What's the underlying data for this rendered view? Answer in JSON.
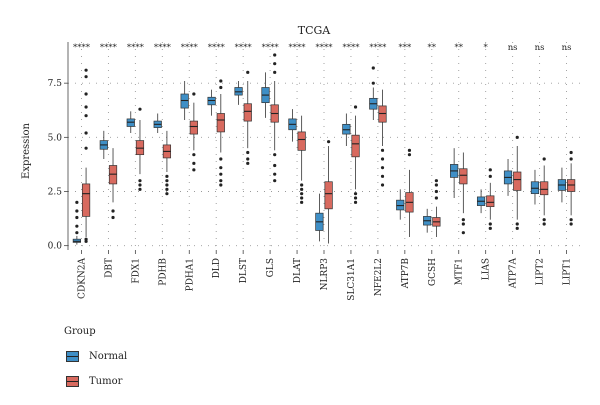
{
  "chart_data": {
    "type": "box",
    "title": "TCGA",
    "xlabel": "",
    "ylabel": "Expression",
    "ylim": [
      -0.2,
      9.4
    ],
    "yticks": [
      "0.0",
      "2.5",
      "5.0",
      "7.5"
    ],
    "grid": "dotted",
    "categories": [
      "CDKN2A",
      "DBT",
      "FDX1",
      "PDHB",
      "PDHA1",
      "DLD",
      "DLST",
      "GLS",
      "DLAT",
      "NLRP3",
      "SLC31A1",
      "NFE2L2",
      "ATP7B",
      "GCSH",
      "MTF1",
      "LIAS",
      "ATP7A",
      "LIPT2",
      "LIPT1"
    ],
    "significance": [
      "****",
      "****",
      "****",
      "****",
      "****",
      "****",
      "****",
      "****",
      "****",
      "****",
      "****",
      "****",
      "***",
      "**",
      "**",
      "*",
      "ns",
      "ns",
      "ns"
    ],
    "series": [
      {
        "name": "Normal",
        "color": "#3f8fc6",
        "boxes": [
          {
            "min": 0.05,
            "q1": 0.15,
            "median": 0.2,
            "q3": 0.3,
            "max": 0.45,
            "outliers": [
              0.6,
              0.9,
              1.3,
              1.6,
              2.0
            ]
          },
          {
            "min": 4.0,
            "q1": 4.45,
            "median": 4.65,
            "q3": 4.85,
            "max": 5.3,
            "outliers": []
          },
          {
            "min": 5.2,
            "q1": 5.5,
            "median": 5.7,
            "q3": 5.85,
            "max": 6.2,
            "outliers": []
          },
          {
            "min": 5.2,
            "q1": 5.45,
            "median": 5.6,
            "q3": 5.75,
            "max": 6.1,
            "outliers": []
          },
          {
            "min": 5.8,
            "q1": 6.35,
            "median": 6.7,
            "q3": 7.0,
            "max": 7.6,
            "outliers": []
          },
          {
            "min": 6.0,
            "q1": 6.5,
            "median": 6.7,
            "q3": 6.85,
            "max": 7.2,
            "outliers": []
          },
          {
            "min": 6.5,
            "q1": 6.95,
            "median": 7.1,
            "q3": 7.3,
            "max": 7.6,
            "outliers": []
          },
          {
            "min": 5.9,
            "q1": 6.6,
            "median": 6.95,
            "q3": 7.3,
            "max": 8.0,
            "outliers": []
          },
          {
            "min": 4.8,
            "q1": 5.35,
            "median": 5.6,
            "q3": 5.85,
            "max": 6.3,
            "outliers": []
          },
          {
            "min": 0.2,
            "q1": 0.7,
            "median": 1.1,
            "q3": 1.5,
            "max": 2.4,
            "outliers": []
          },
          {
            "min": 4.6,
            "q1": 5.15,
            "median": 5.35,
            "q3": 5.6,
            "max": 6.1,
            "outliers": []
          },
          {
            "min": 5.8,
            "q1": 6.3,
            "median": 6.55,
            "q3": 6.8,
            "max": 7.3,
            "outliers": [
              7.5,
              8.2
            ]
          },
          {
            "min": 1.2,
            "q1": 1.65,
            "median": 1.85,
            "q3": 2.1,
            "max": 2.6,
            "outliers": []
          },
          {
            "min": 0.6,
            "q1": 0.95,
            "median": 1.15,
            "q3": 1.35,
            "max": 1.7,
            "outliers": []
          },
          {
            "min": 2.2,
            "q1": 3.15,
            "median": 3.45,
            "q3": 3.75,
            "max": 4.5,
            "outliers": []
          },
          {
            "min": 1.5,
            "q1": 1.85,
            "median": 2.05,
            "q3": 2.25,
            "max": 2.6,
            "outliers": []
          },
          {
            "min": 2.3,
            "q1": 2.85,
            "median": 3.15,
            "q3": 3.45,
            "max": 4.0,
            "outliers": []
          },
          {
            "min": 1.9,
            "q1": 2.4,
            "median": 2.65,
            "q3": 2.95,
            "max": 3.5,
            "outliers": []
          },
          {
            "min": 2.0,
            "q1": 2.55,
            "median": 2.8,
            "q3": 3.05,
            "max": 3.6,
            "outliers": []
          }
        ]
      },
      {
        "name": "Tumor",
        "color": "#d86a5f",
        "boxes": [
          {
            "min": 0.4,
            "q1": 1.35,
            "median": 2.4,
            "q3": 2.85,
            "max": 3.6,
            "outliers": [
              0.3,
              0.2,
              4.5,
              5.2,
              6.0,
              6.4,
              7.0,
              7.8,
              8.1
            ]
          },
          {
            "min": 2.0,
            "q1": 2.85,
            "median": 3.3,
            "q3": 3.7,
            "max": 4.5,
            "outliers": [
              1.6,
              1.3
            ]
          },
          {
            "min": 3.3,
            "q1": 4.2,
            "median": 4.5,
            "q3": 4.85,
            "max": 5.8,
            "outliers": [
              3.0,
              2.8,
              2.6,
              6.3
            ]
          },
          {
            "min": 3.4,
            "q1": 4.05,
            "median": 4.35,
            "q3": 4.65,
            "max": 5.3,
            "outliers": [
              3.2,
              3.0,
              2.8,
              2.6,
              2.4
            ]
          },
          {
            "min": 4.4,
            "q1": 5.15,
            "median": 5.5,
            "q3": 5.75,
            "max": 6.6,
            "outliers": [
              4.2,
              3.8,
              3.5,
              7.0
            ]
          },
          {
            "min": 4.3,
            "q1": 5.25,
            "median": 5.8,
            "q3": 6.1,
            "max": 7.0,
            "outliers": [
              4.0,
              3.6,
              3.3,
              3.0,
              2.8,
              7.3,
              7.6
            ]
          },
          {
            "min": 4.5,
            "q1": 5.75,
            "median": 6.2,
            "q3": 6.55,
            "max": 7.6,
            "outliers": [
              4.3,
              4.0,
              3.8,
              8.0
            ]
          },
          {
            "min": 4.4,
            "q1": 5.7,
            "median": 6.1,
            "q3": 6.5,
            "max": 7.6,
            "outliers": [
              4.2,
              3.7,
              3.3,
              3.0,
              8.0,
              8.4,
              8.8
            ]
          },
          {
            "min": 3.0,
            "q1": 4.4,
            "median": 4.9,
            "q3": 5.25,
            "max": 6.0,
            "outliers": [
              2.8,
              2.6,
              2.4,
              2.2,
              2.0
            ]
          },
          {
            "min": 0.1,
            "q1": 1.7,
            "median": 2.4,
            "q3": 2.95,
            "max": 4.6,
            "outliers": [
              4.8
            ]
          },
          {
            "min": 2.6,
            "q1": 4.1,
            "median": 4.7,
            "q3": 5.1,
            "max": 6.0,
            "outliers": [
              2.4,
              2.2,
              2.0,
              6.4
            ]
          },
          {
            "min": 4.6,
            "q1": 5.7,
            "median": 6.1,
            "q3": 6.45,
            "max": 7.2,
            "outliers": [
              4.4,
              4.0,
              3.6,
              3.2,
              2.8
            ]
          },
          {
            "min": 0.4,
            "q1": 1.55,
            "median": 2.0,
            "q3": 2.45,
            "max": 3.5,
            "outliers": [
              4.2,
              4.4
            ]
          },
          {
            "min": 0.4,
            "q1": 0.9,
            "median": 1.1,
            "q3": 1.3,
            "max": 1.8,
            "outliers": [
              2.2,
              2.5,
              2.8,
              3.0
            ]
          },
          {
            "min": 1.5,
            "q1": 2.85,
            "median": 3.25,
            "q3": 3.55,
            "max": 4.3,
            "outliers": [
              1.2,
              1.0,
              0.6
            ]
          },
          {
            "min": 1.2,
            "q1": 1.8,
            "median": 2.0,
            "q3": 2.3,
            "max": 2.9,
            "outliers": [
              1.0,
              0.8,
              3.2,
              3.5
            ]
          },
          {
            "min": 1.2,
            "q1": 2.55,
            "median": 3.05,
            "q3": 3.4,
            "max": 4.6,
            "outliers": [
              1.0,
              0.8,
              5.0
            ]
          },
          {
            "min": 1.4,
            "q1": 2.35,
            "median": 2.6,
            "q3": 2.95,
            "max": 3.7,
            "outliers": [
              1.2,
              1.0,
              4.0
            ]
          },
          {
            "min": 1.4,
            "q1": 2.5,
            "median": 2.8,
            "q3": 3.05,
            "max": 3.8,
            "outliers": [
              1.2,
              1.0,
              4.0,
              4.3
            ]
          }
        ]
      }
    ],
    "legend": {
      "title": "Group",
      "placement": "bottom-left"
    }
  }
}
